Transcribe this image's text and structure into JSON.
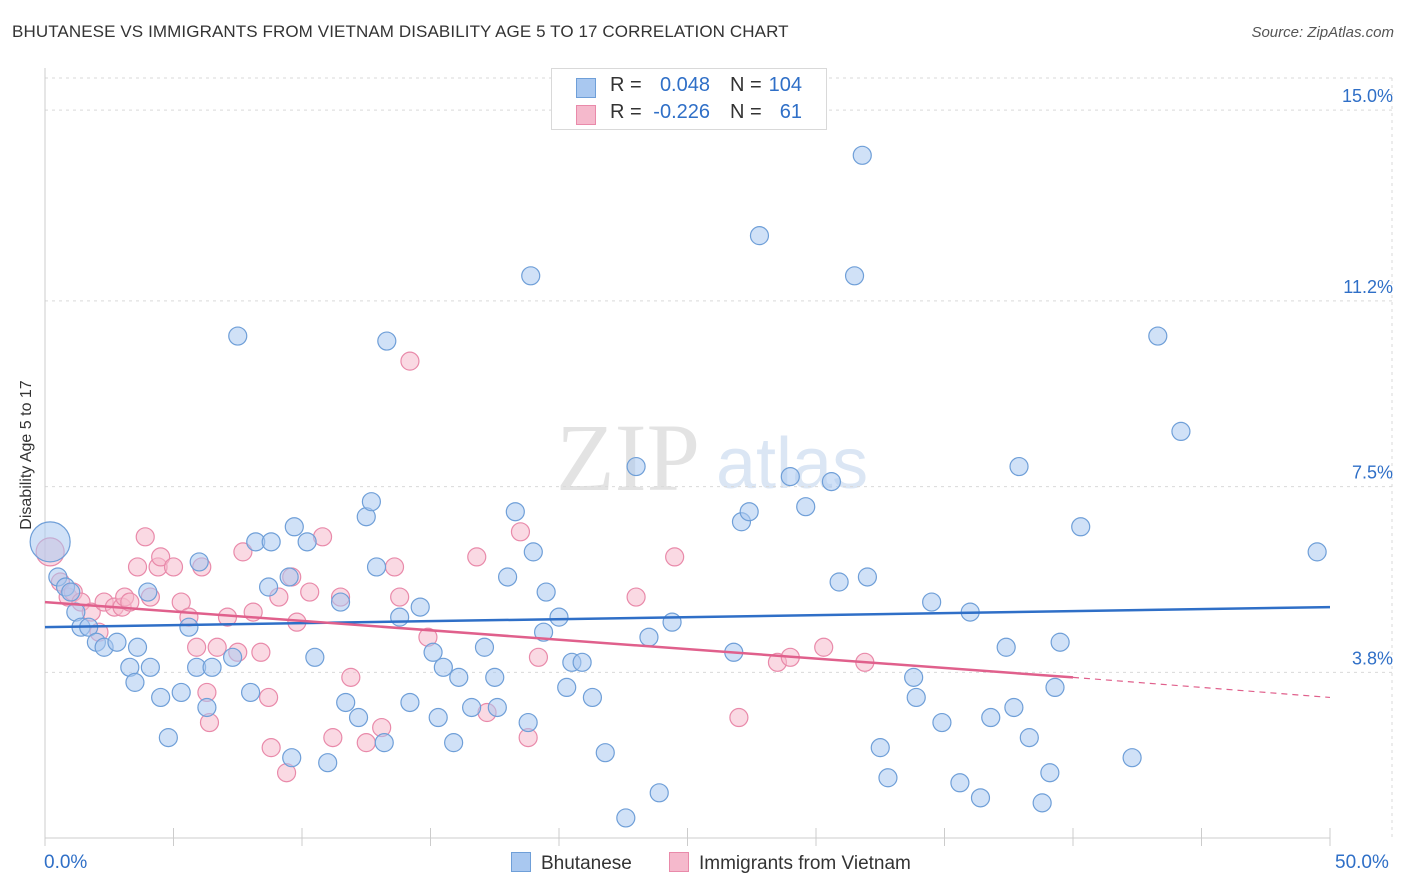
{
  "title": "BHUTANESE VS IMMIGRANTS FROM VIETNAM DISABILITY AGE 5 TO 17 CORRELATION CHART",
  "source": "Source: ZipAtlas.com",
  "watermark": {
    "zip": "ZIP",
    "atlas": "atlas"
  },
  "stats": {
    "r_label": "R =",
    "n_label": "N =",
    "bhutanese": {
      "r": "0.048",
      "n": "104"
    },
    "vietnam": {
      "r": "-0.226",
      "n": "61"
    }
  },
  "legend": {
    "bhutanese": "Bhutanese",
    "vietnam": "Immigrants from Vietnam"
  },
  "colors": {
    "blue_fill": "#a9c8f0",
    "blue_stroke": "#6f9fd8",
    "blue_line": "#2f6fc7",
    "pink_fill": "#f5b9cc",
    "pink_stroke": "#e98aaa",
    "pink_line": "#e0608c",
    "axis_text": "#2f6fc7",
    "grid": "#d9d9d9"
  },
  "chart_data": {
    "type": "scatter",
    "title": "BHUTANESE VS IMMIGRANTS FROM VIETNAM DISABILITY AGE 5 TO 17 CORRELATION CHART",
    "xlabel": "",
    "ylabel": "Disability Age 5 to 17",
    "xlim": [
      0,
      50
    ],
    "ylim": [
      0.5,
      15.8
    ],
    "x_tick_labels": [
      "0.0%",
      "50.0%"
    ],
    "y_ticks": [
      3.8,
      7.5,
      11.2,
      15.0
    ],
    "y_tick_labels": [
      "3.8%",
      "7.5%",
      "11.2%",
      "15.0%"
    ],
    "grid": true,
    "series": [
      {
        "name": "Bhutanese",
        "r": 0.048,
        "n": 104,
        "trend": {
          "x": [
            0,
            50
          ],
          "y": [
            4.7,
            5.1
          ]
        },
        "points": [
          [
            0.2,
            6.4
          ],
          [
            0.5,
            5.7
          ],
          [
            0.8,
            5.5
          ],
          [
            1.0,
            5.4
          ],
          [
            1.2,
            5.0
          ],
          [
            1.4,
            4.7
          ],
          [
            1.7,
            4.7
          ],
          [
            2.0,
            4.4
          ],
          [
            2.3,
            4.3
          ],
          [
            2.8,
            4.4
          ],
          [
            3.3,
            3.9
          ],
          [
            3.5,
            3.6
          ],
          [
            3.6,
            4.3
          ],
          [
            4.1,
            3.9
          ],
          [
            4.0,
            5.4
          ],
          [
            4.5,
            3.3
          ],
          [
            4.8,
            2.5
          ],
          [
            5.3,
            3.4
          ],
          [
            5.6,
            4.7
          ],
          [
            5.9,
            3.9
          ],
          [
            6.0,
            6.0
          ],
          [
            6.3,
            3.1
          ],
          [
            6.5,
            3.9
          ],
          [
            7.3,
            4.1
          ],
          [
            7.5,
            10.5
          ],
          [
            8.0,
            3.4
          ],
          [
            8.2,
            6.4
          ],
          [
            8.7,
            5.5
          ],
          [
            8.8,
            6.4
          ],
          [
            9.5,
            5.7
          ],
          [
            9.6,
            2.1
          ],
          [
            9.7,
            6.7
          ],
          [
            10.2,
            6.4
          ],
          [
            10.5,
            4.1
          ],
          [
            11.0,
            2.0
          ],
          [
            11.5,
            5.2
          ],
          [
            11.7,
            3.2
          ],
          [
            12.2,
            2.9
          ],
          [
            12.5,
            6.9
          ],
          [
            12.7,
            7.2
          ],
          [
            12.9,
            5.9
          ],
          [
            13.2,
            2.4
          ],
          [
            13.3,
            10.4
          ],
          [
            13.8,
            4.9
          ],
          [
            14.2,
            3.2
          ],
          [
            14.6,
            5.1
          ],
          [
            15.1,
            4.2
          ],
          [
            15.3,
            2.9
          ],
          [
            15.5,
            3.9
          ],
          [
            15.9,
            2.4
          ],
          [
            16.1,
            3.7
          ],
          [
            16.6,
            3.1
          ],
          [
            17.1,
            4.3
          ],
          [
            17.5,
            3.7
          ],
          [
            17.6,
            3.1
          ],
          [
            18.0,
            5.7
          ],
          [
            18.3,
            7.0
          ],
          [
            18.8,
            2.8
          ],
          [
            18.9,
            11.7
          ],
          [
            19.0,
            6.2
          ],
          [
            19.5,
            5.4
          ],
          [
            19.4,
            4.6
          ],
          [
            20.0,
            4.9
          ],
          [
            20.3,
            3.5
          ],
          [
            20.5,
            4.0
          ],
          [
            20.9,
            4.0
          ],
          [
            21.3,
            3.3
          ],
          [
            21.8,
            2.2
          ],
          [
            22.6,
            0.9
          ],
          [
            23.0,
            7.9
          ],
          [
            23.5,
            4.5
          ],
          [
            23.9,
            1.4
          ],
          [
            24.4,
            4.8
          ],
          [
            26.8,
            4.2
          ],
          [
            27.1,
            6.8
          ],
          [
            27.4,
            7.0
          ],
          [
            27.8,
            12.5
          ],
          [
            29.0,
            7.7
          ],
          [
            29.6,
            7.1
          ],
          [
            30.6,
            7.6
          ],
          [
            30.9,
            5.6
          ],
          [
            31.5,
            11.7
          ],
          [
            31.8,
            14.1
          ],
          [
            32.0,
            5.7
          ],
          [
            32.5,
            2.3
          ],
          [
            32.8,
            1.7
          ],
          [
            33.8,
            3.7
          ],
          [
            33.9,
            3.3
          ],
          [
            34.5,
            5.2
          ],
          [
            34.9,
            2.8
          ],
          [
            35.6,
            1.6
          ],
          [
            36.0,
            5.0
          ],
          [
            36.4,
            1.3
          ],
          [
            36.8,
            2.9
          ],
          [
            37.4,
            4.3
          ],
          [
            37.7,
            3.1
          ],
          [
            37.9,
            7.9
          ],
          [
            38.3,
            2.5
          ],
          [
            38.8,
            1.2
          ],
          [
            39.1,
            1.8
          ],
          [
            39.3,
            3.5
          ],
          [
            39.5,
            4.4
          ],
          [
            40.3,
            6.7
          ],
          [
            42.3,
            2.1
          ],
          [
            43.3,
            10.5
          ],
          [
            44.2,
            8.6
          ],
          [
            49.5,
            6.2
          ]
        ],
        "sizes_note": "one large point at x=0.2"
      },
      {
        "name": "Immigrants from Vietnam",
        "r": -0.226,
        "n": 61,
        "trend": {
          "x": [
            0,
            40
          ],
          "y": [
            5.2,
            3.7
          ]
        },
        "trend_dashed": {
          "x": [
            40,
            50
          ],
          "y": [
            3.7,
            3.3
          ]
        },
        "points": [
          [
            0.2,
            6.2
          ],
          [
            0.6,
            5.6
          ],
          [
            0.9,
            5.3
          ],
          [
            1.1,
            5.4
          ],
          [
            1.4,
            5.2
          ],
          [
            1.8,
            5.0
          ],
          [
            2.1,
            4.6
          ],
          [
            2.3,
            5.2
          ],
          [
            2.7,
            5.1
          ],
          [
            3.0,
            5.1
          ],
          [
            3.1,
            5.3
          ],
          [
            3.3,
            5.2
          ],
          [
            3.6,
            5.9
          ],
          [
            3.9,
            6.5
          ],
          [
            4.1,
            5.3
          ],
          [
            4.4,
            5.9
          ],
          [
            4.5,
            6.1
          ],
          [
            5.0,
            5.9
          ],
          [
            5.3,
            5.2
          ],
          [
            5.6,
            4.9
          ],
          [
            5.9,
            4.3
          ],
          [
            6.1,
            5.9
          ],
          [
            6.3,
            3.4
          ],
          [
            6.4,
            2.8
          ],
          [
            6.7,
            4.3
          ],
          [
            7.1,
            4.9
          ],
          [
            7.5,
            4.2
          ],
          [
            7.7,
            6.2
          ],
          [
            8.1,
            5.0
          ],
          [
            8.4,
            4.2
          ],
          [
            8.7,
            3.3
          ],
          [
            8.8,
            2.3
          ],
          [
            9.1,
            5.3
          ],
          [
            9.4,
            1.8
          ],
          [
            9.6,
            5.7
          ],
          [
            9.8,
            4.8
          ],
          [
            10.3,
            5.4
          ],
          [
            10.8,
            6.5
          ],
          [
            11.2,
            2.5
          ],
          [
            11.5,
            5.3
          ],
          [
            11.9,
            3.7
          ],
          [
            12.5,
            2.4
          ],
          [
            13.1,
            2.7
          ],
          [
            13.6,
            5.9
          ],
          [
            13.8,
            5.3
          ],
          [
            14.2,
            10.0
          ],
          [
            14.9,
            4.5
          ],
          [
            16.8,
            6.1
          ],
          [
            17.2,
            3.0
          ],
          [
            18.5,
            6.6
          ],
          [
            18.8,
            2.5
          ],
          [
            19.2,
            4.1
          ],
          [
            23.0,
            5.3
          ],
          [
            24.5,
            6.1
          ],
          [
            27.0,
            2.9
          ],
          [
            28.5,
            4.0
          ],
          [
            29.0,
            4.1
          ],
          [
            30.3,
            4.3
          ],
          [
            31.9,
            4.0
          ]
        ]
      }
    ]
  }
}
